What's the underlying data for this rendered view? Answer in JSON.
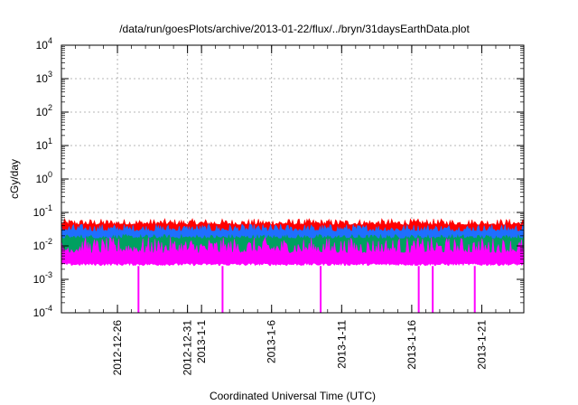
{
  "chart_data": {
    "type": "area",
    "title": "/data/run/goesPlots/archive/2013-01-22/flux/../bryn/31daysEarthData.plot",
    "xlabel": "Coordinated Universal Time (UTC)",
    "ylabel": "cGy/day",
    "y_scale": "log",
    "ylim": [
      0.0001,
      10000
    ],
    "xlim": [
      "2012-12-22",
      "2013-01-24"
    ],
    "grid": true,
    "x_ticks": [
      "2012-12-26",
      "2012-12-31",
      "2013-1-1",
      "2013-1-6",
      "2013-1-11",
      "2013-1-16",
      "2013-1-21"
    ],
    "x_tick_dates": [
      "2012-12-26",
      "2012-12-31",
      "2013-01-01",
      "2013-01-06",
      "2013-01-11",
      "2013-01-16",
      "2013-01-21"
    ],
    "y_ticks": [
      {
        "value": 0.0001,
        "base": "10",
        "exp": "-4"
      },
      {
        "value": 0.001,
        "base": "10",
        "exp": "-3"
      },
      {
        "value": 0.01,
        "base": "10",
        "exp": "-2"
      },
      {
        "value": 0.1,
        "base": "10",
        "exp": "-1"
      },
      {
        "value": 1,
        "base": "10",
        "exp": "0"
      },
      {
        "value": 10,
        "base": "10",
        "exp": "1"
      },
      {
        "value": 100,
        "base": "10",
        "exp": "2"
      },
      {
        "value": 1000,
        "base": "10",
        "exp": "3"
      },
      {
        "value": 10000,
        "base": "10",
        "exp": "4"
      }
    ],
    "series": [
      {
        "color": "#ff0000",
        "typical_min": 0.03,
        "typical_max": 0.065
      },
      {
        "color": "#1f6fff",
        "typical_min": 0.018,
        "typical_max": 0.045
      },
      {
        "color": "#00a060",
        "typical_min": 0.013,
        "typical_max": 0.022
      },
      {
        "color": "#ff00ff",
        "typical_min": 0.0025,
        "typical_max": 0.018
      }
    ],
    "dropouts": [
      {
        "date": "2012-12-27",
        "value": 0.0001
      },
      {
        "date": "2013-01-02",
        "value": 0.0001
      },
      {
        "date": "2013-01-09",
        "value": 0.0001
      },
      {
        "date": "2013-01-16",
        "value": 0.0001
      },
      {
        "date": "2013-01-17",
        "value": 0.0001
      },
      {
        "date": "2013-01-20",
        "value": 0.0001
      }
    ]
  }
}
